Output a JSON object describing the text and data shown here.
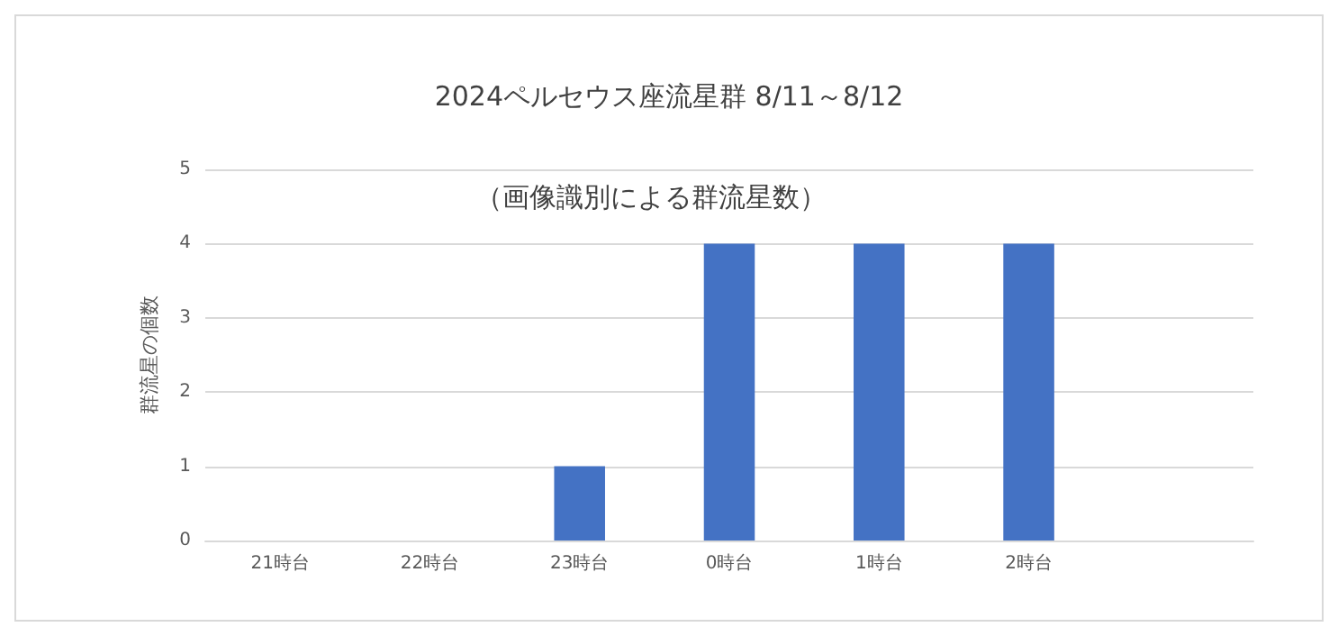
{
  "chart_data": {
    "type": "bar",
    "title": "2024ペルセウス座流星群 8/11～8/12",
    "subtitle": "（画像識別による群流星数）",
    "ylabel": "群流星の個数",
    "categories": [
      "21時台",
      "22時台",
      "23時台",
      "0時台",
      "1時台",
      "2時台",
      null
    ],
    "values": [
      0,
      0,
      1,
      4,
      4,
      4,
      null
    ],
    "color": "#4472c4",
    "ylim": [
      0,
      5
    ],
    "yticks": [
      0,
      1,
      2,
      3,
      4,
      5
    ],
    "grid": "y"
  }
}
